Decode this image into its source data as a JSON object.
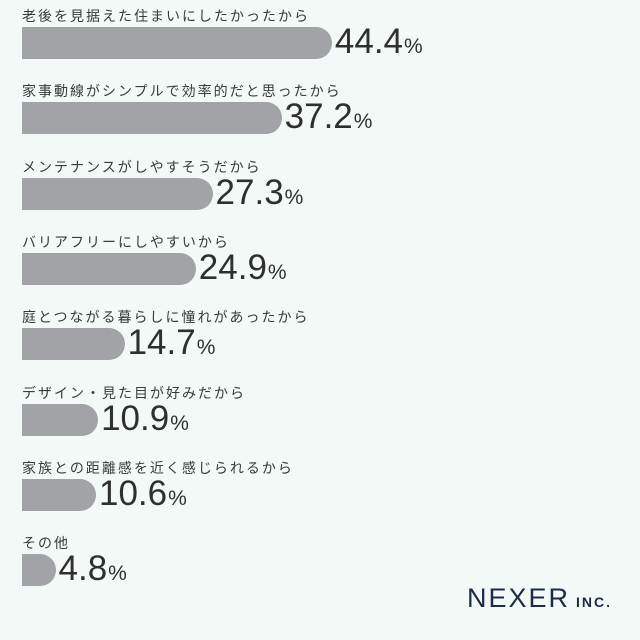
{
  "chart_data": {
    "type": "bar",
    "orientation": "horizontal",
    "categories": [
      "老後を見据えた住まいにしたかったから",
      "家事動線がシンプルで効率的だと思ったから",
      "メンテナンスがしやすそうだから",
      "バリアフリーにしやすいから",
      "庭とつながる暮らしに憧れがあったから",
      "デザイン・見た目が好みだから",
      "家族との距離感を近く感じられるから",
      "その他"
    ],
    "values": [
      44.4,
      37.2,
      27.3,
      24.9,
      14.7,
      10.9,
      10.6,
      4.8
    ],
    "unit": "%",
    "bar_color": "#a1a3a6",
    "grid": false
  },
  "logo": {
    "main": "NEXER",
    "suffix": "INC."
  }
}
